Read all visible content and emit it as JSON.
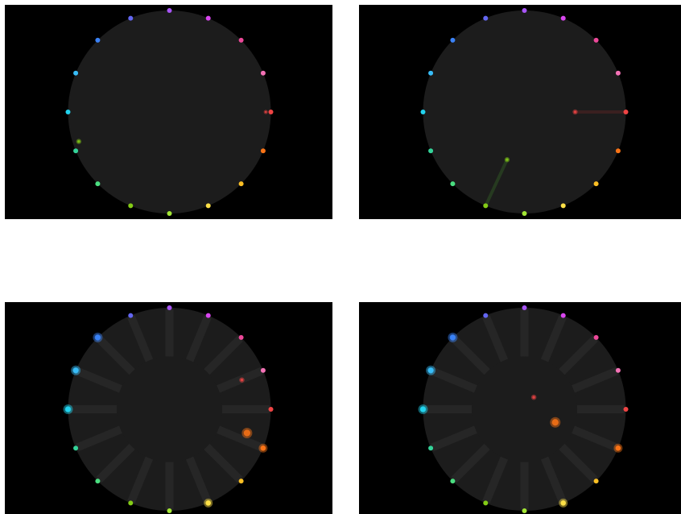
{
  "node_colors": [
    "#a855f7",
    "#d946ef",
    "#ec4899",
    "#f472b6",
    "#ef4444",
    "#f97316",
    "#fbbf24",
    "#fde047",
    "#a3e635",
    "#84cc16",
    "#4ade80",
    "#34d399",
    "#22d3ee",
    "#38bdf8",
    "#3b82f6",
    "#6366f1"
  ],
  "disc_color": "#1c1c1c",
  "spoke_color": "#262626",
  "panels": [
    {
      "spokes": false,
      "trails": [],
      "particles": [
        {
          "angle": 90,
          "radius": 0.95,
          "color": "#ef4444",
          "size": 1.6
        },
        {
          "angle": 252,
          "radius": 0.94,
          "color": "#84cc16",
          "size": 2.2
        }
      ]
    },
    {
      "spokes": false,
      "trails": [
        {
          "from_angle": 90,
          "from_radius": 1.0,
          "to_angle": 90,
          "to_radius": 0.5,
          "color": "#3a2020"
        },
        {
          "from_angle": 202.5,
          "from_radius": 1.0,
          "to_angle": 200,
          "to_radius": 0.5,
          "color": "#263a20"
        }
      ],
      "particles": [
        {
          "angle": 90,
          "radius": 0.5,
          "color": "#ef4444",
          "size": 2.2
        },
        {
          "angle": 200,
          "radius": 0.5,
          "color": "#84cc16",
          "size": 2.2
        }
      ]
    },
    {
      "spokes": true,
      "trails": [],
      "particles": [
        {
          "angle": 68,
          "radius": 0.77,
          "color": "#ef4444",
          "size": 2.3
        },
        {
          "angle": 107,
          "radius": 0.8,
          "color": "#f97316",
          "size": 5.5
        },
        {
          "angle": 112.5,
          "radius": 1.0,
          "color": "#f97316",
          "size": 4.5
        },
        {
          "angle": 157.5,
          "radius": 1.0,
          "color": "#fde047",
          "size": 4.5
        },
        {
          "angle": 270,
          "radius": 1.0,
          "color": "#22d3ee",
          "size": 5
        },
        {
          "angle": 292.5,
          "radius": 1.0,
          "color": "#38bdf8",
          "size": 5
        },
        {
          "angle": 315,
          "radius": 1.0,
          "color": "#3b82f6",
          "size": 5
        }
      ]
    },
    {
      "spokes": true,
      "trails": [],
      "particles": [
        {
          "angle": 38,
          "radius": 0.15,
          "color": "#ef4444",
          "size": 2.3
        },
        {
          "angle": 113,
          "radius": 0.33,
          "color": "#f97316",
          "size": 5.5
        },
        {
          "angle": 112.5,
          "radius": 1.0,
          "color": "#f97316",
          "size": 4.5
        },
        {
          "angle": 157.5,
          "radius": 1.0,
          "color": "#fde047",
          "size": 4.5
        },
        {
          "angle": 270,
          "radius": 1.0,
          "color": "#22d3ee",
          "size": 5
        },
        {
          "angle": 292.5,
          "radius": 1.0,
          "color": "#38bdf8",
          "size": 5
        },
        {
          "angle": 315,
          "radius": 1.0,
          "color": "#3b82f6",
          "size": 5
        }
      ]
    }
  ]
}
